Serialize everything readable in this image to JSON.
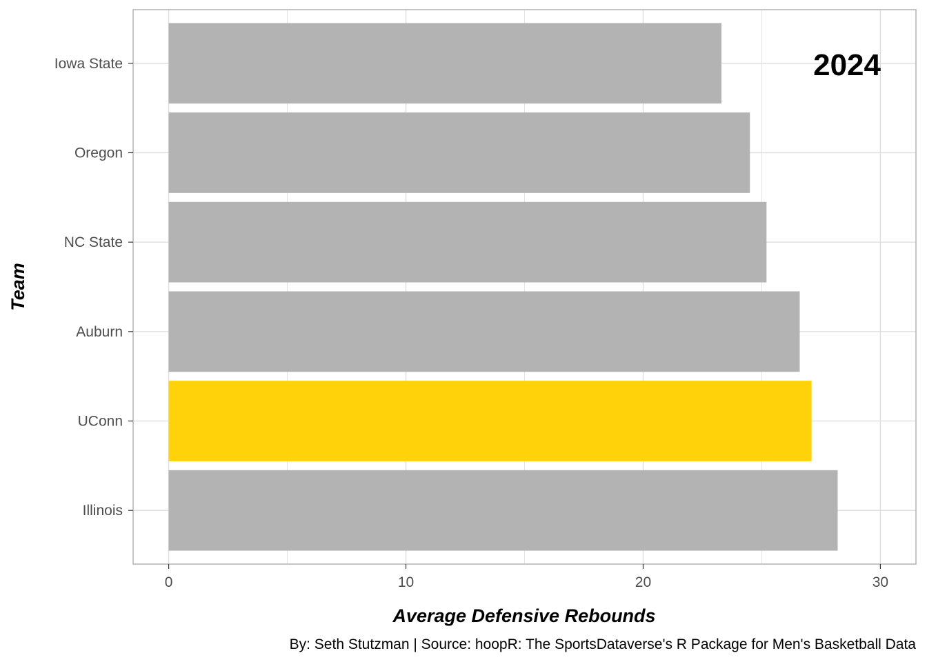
{
  "chart_data": {
    "type": "bar",
    "orientation": "horizontal",
    "categories": [
      "Illinois",
      "UConn",
      "Auburn",
      "NC State",
      "Oregon",
      "Iowa State"
    ],
    "values": [
      28.2,
      27.1,
      26.6,
      25.2,
      24.5,
      23.3
    ],
    "xlabel": "Average Defensive Rebounds",
    "ylabel": "Team",
    "xlim": [
      -1.5,
      31.5
    ],
    "xticks": [
      0,
      10,
      20,
      30
    ],
    "xticks_minor": [
      5,
      15,
      25
    ],
    "annotation": "2024",
    "caption": "By: Seth Stutzman | Source: hoopR: The SportsDataverse's R Package for Men's Basketball Data",
    "grid": true,
    "legend": "none",
    "colors": {
      "default_bar": "#b3b3b3",
      "highlight_bar": "#ffd20a",
      "highlight_category": "UConn",
      "grid": "#dcdcdc",
      "panel_border": "#b3b3b3"
    }
  }
}
